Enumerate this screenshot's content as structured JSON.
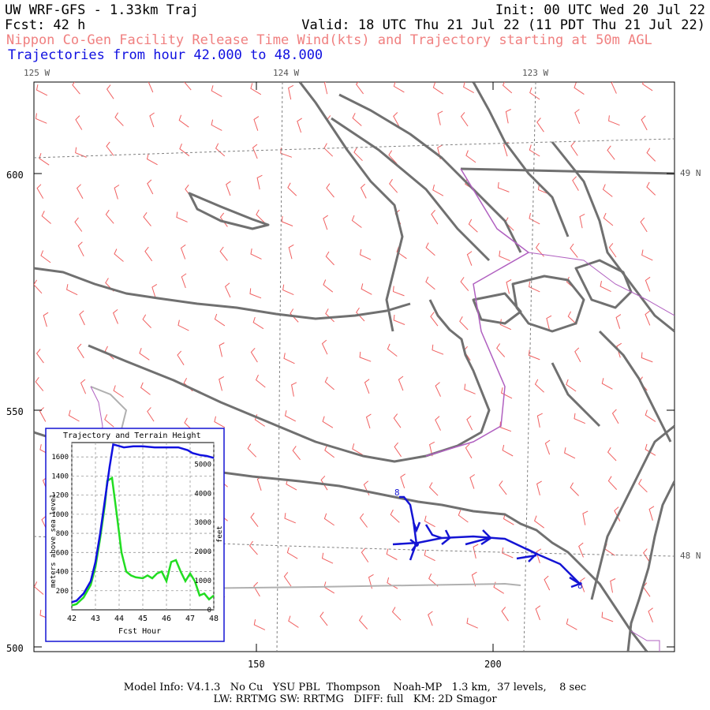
{
  "header": {
    "title": "UW WRF-GFS - 1.33km Traj",
    "init": "Init: 00 UTC Wed 20 Jul 22",
    "fcst": "Fcst:  42 h",
    "valid": "Valid: 18 UTC Thu 21 Jul 22 (11 PDT Thu 21 Jul 22)",
    "subtitle": "Nippon Co-Gen Facility Release Time Wind(kts) and Trajectory starting at 50m AGL",
    "traj_range": "Trajectories from hour  42.000 to  48.000"
  },
  "map": {
    "lon_labels": [
      "125 W",
      "124 W",
      "123 W"
    ],
    "lat_labels": [
      "49 N",
      "48 N"
    ],
    "y_ticks": [
      "600",
      "550",
      "500"
    ],
    "x_ticks": [
      "150",
      "200"
    ],
    "colors": {
      "coast": "#707070",
      "wind": "#f06060",
      "traj": "#1414d4",
      "border": "#b060c0"
    }
  },
  "inset": {
    "title": "Trajectory and Terrain Height",
    "ylabel_left": "meters above sea level",
    "ylabel_right": "feet",
    "xlabel": "Fcst Hour",
    "x_ticks": [
      "42",
      "43",
      "44",
      "45",
      "46",
      "47",
      "48"
    ],
    "y_ticks_left": [
      "200",
      "400",
      "600",
      "800",
      "1000",
      "1200",
      "1400",
      "1600"
    ],
    "y_ticks_right": [
      "0",
      "1000",
      "2000",
      "3000",
      "4000",
      "5000"
    ]
  },
  "chart_data": {
    "type": "line",
    "title": "Trajectory and Terrain Height",
    "xlabel": "Fcst Hour",
    "ylabel": "meters above sea level",
    "xlim": [
      42,
      48
    ],
    "ylim": [
      0,
      1750
    ],
    "series": [
      {
        "color": "#1010e0",
        "x": [
          42,
          42.2,
          42.5,
          42.8,
          43.0,
          43.2,
          43.4,
          43.6,
          43.75,
          43.9,
          44.2,
          44.6,
          45,
          45.5,
          46,
          46.5,
          46.9,
          47.1,
          47.4,
          47.7,
          48
        ],
        "values": [
          80,
          95,
          170,
          300,
          500,
          800,
          1150,
          1500,
          1730,
          1720,
          1700,
          1710,
          1710,
          1700,
          1700,
          1700,
          1670,
          1640,
          1620,
          1610,
          1590
        ]
      },
      {
        "color": "#22dd22",
        "x": [
          42,
          42.2,
          42.5,
          42.8,
          43.0,
          43.2,
          43.4,
          43.5,
          43.7,
          43.9,
          44.1,
          44.3,
          44.5,
          44.7,
          45,
          45.2,
          45.4,
          45.6,
          45.8,
          46.0,
          46.2,
          46.4,
          46.6,
          46.8,
          47.0,
          47.2,
          47.4,
          47.6,
          47.8,
          48
        ],
        "values": [
          45,
          60,
          130,
          260,
          450,
          750,
          1100,
          1350,
          1380,
          1000,
          600,
          400,
          360,
          340,
          330,
          360,
          330,
          380,
          400,
          300,
          500,
          520,
          400,
          300,
          380,
          300,
          150,
          170,
          110,
          150
        ]
      }
    ]
  },
  "footer": {
    "line1": "Model Info: V4.1.3   No Cu   YSU PBL  Thompson    Noah-MP   1.3 km,  37 levels,    8 sec",
    "line2": "LW: RRTMG SW: RRTMG   DIFF: full   KM: 2D Smagor"
  },
  "traj_start_label": "8",
  "traj_end_label": "8"
}
